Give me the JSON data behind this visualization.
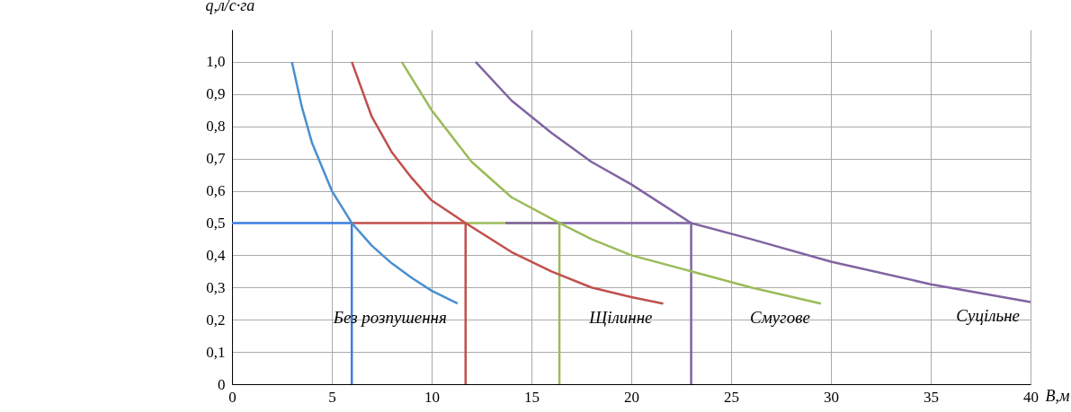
{
  "chart_data": {
    "type": "line",
    "xlabel": "B,м",
    "ylabel": "q,л/с·га",
    "xlim": [
      0,
      40
    ],
    "ylim": [
      0,
      1.1
    ],
    "xticks": [
      0,
      5,
      10,
      15,
      20,
      25,
      30,
      35,
      40
    ],
    "yticks": [
      0,
      {
        "value": 0.1,
        "label": "0,1"
      },
      {
        "value": 0.2,
        "label": "0,2"
      },
      {
        "value": 0.3,
        "label": "0,3"
      },
      {
        "value": 0.4,
        "label": "0,4"
      },
      {
        "value": 0.5,
        "label": "0,5"
      },
      {
        "value": 0.6,
        "label": "0,6"
      },
      {
        "value": 0.7,
        "label": "0,7"
      },
      {
        "value": 0.8,
        "label": "0,8"
      },
      {
        "value": 0.9,
        "label": "0,9"
      },
      {
        "value": 1.0,
        "label": "1,0"
      }
    ],
    "grid": true,
    "legend": false,
    "marker": "none",
    "line_style": "solid",
    "series": [
      {
        "color": "#3a7fe0",
        "x": [
          0,
          6,
          6
        ],
        "values": [
          0.5,
          0.5,
          0
        ]
      },
      {
        "color": "#c0504d",
        "x": [
          6,
          11.7,
          11.7
        ],
        "values": [
          0.5,
          0.5,
          0
        ]
      },
      {
        "color": "#9bbb59",
        "x": [
          11.7,
          16.4,
          16.4
        ],
        "values": [
          0.5,
          0.5,
          0
        ]
      },
      {
        "color": "#8064a2",
        "x": [
          13.7,
          23,
          23
        ],
        "values": [
          0.5,
          0.5,
          0
        ]
      },
      {
        "name": "Без розпушення",
        "color": "#4a8fd0",
        "x": [
          3,
          3.5,
          4,
          5,
          6,
          7,
          8,
          9,
          10,
          11.3
        ],
        "values": [
          1.0,
          0.86,
          0.75,
          0.6,
          0.5,
          0.43,
          0.375,
          0.33,
          0.29,
          0.25
        ]
      },
      {
        "name": "Щілинне",
        "color": "#c0504d",
        "x": [
          6,
          7,
          8,
          9,
          10,
          11.7,
          14,
          16,
          18,
          20,
          21.6
        ],
        "values": [
          1.0,
          0.83,
          0.72,
          0.64,
          0.57,
          0.5,
          0.41,
          0.35,
          0.3,
          0.27,
          0.25
        ]
      },
      {
        "name": "Смугове",
        "color": "#9bbb59",
        "x": [
          8.5,
          10,
          12,
          14,
          16.4,
          18,
          20,
          23,
          26,
          29.5
        ],
        "values": [
          1.0,
          0.85,
          0.69,
          0.58,
          0.5,
          0.45,
          0.4,
          0.35,
          0.3,
          0.25
        ]
      },
      {
        "name": "Суцільне",
        "color": "#8064a2",
        "x": [
          12.2,
          14,
          16,
          18,
          20,
          23,
          26,
          30,
          35,
          40
        ],
        "values": [
          1.0,
          0.88,
          0.78,
          0.69,
          0.62,
          0.5,
          0.45,
          0.38,
          0.31,
          0.255
        ]
      }
    ]
  }
}
